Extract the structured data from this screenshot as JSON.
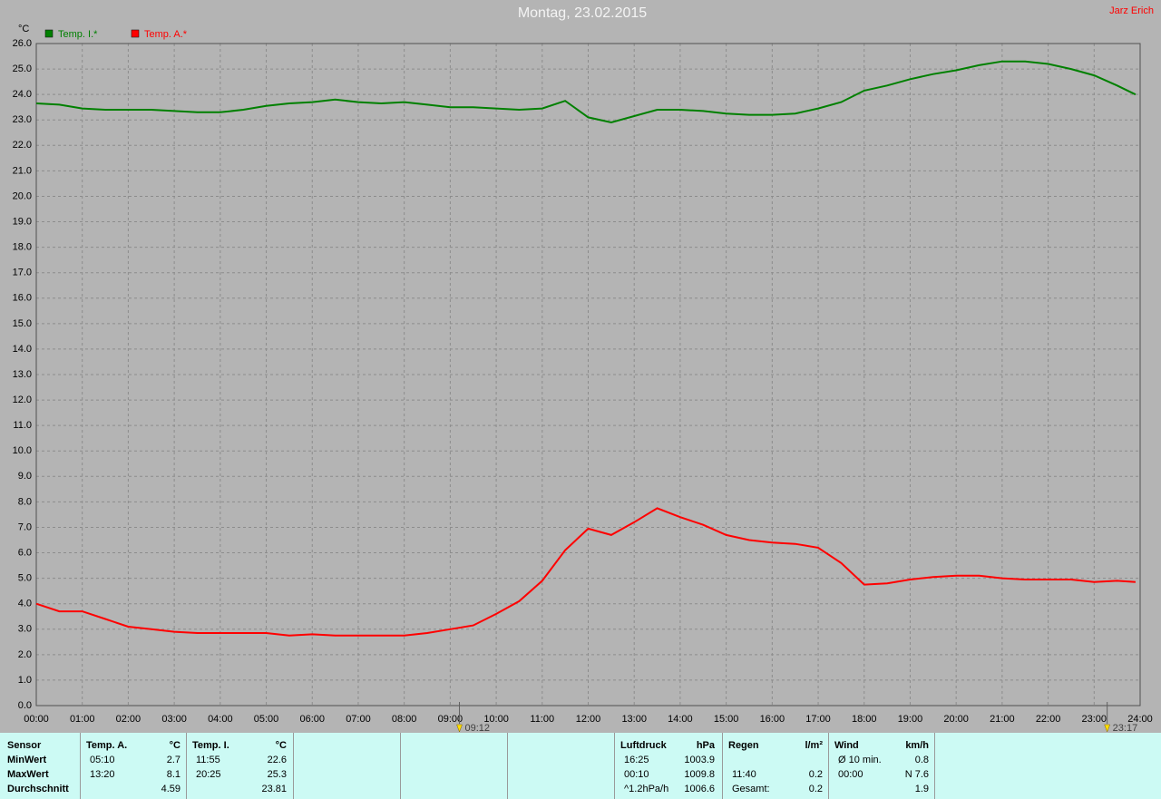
{
  "chart_data": {
    "type": "line",
    "title": "Montag, 23.02.2015",
    "y_label": "°C",
    "x": [
      0,
      0.5,
      1,
      1.5,
      2,
      2.5,
      3,
      3.5,
      4,
      4.5,
      5,
      5.5,
      6,
      6.5,
      7,
      7.5,
      8,
      8.5,
      9,
      9.5,
      10,
      10.5,
      11,
      11.5,
      12,
      12.5,
      13,
      13.5,
      14,
      14.5,
      15,
      15.5,
      16,
      16.5,
      17,
      17.5,
      18,
      18.5,
      19,
      19.5,
      20,
      20.5,
      21,
      21.5,
      22,
      22.5,
      23,
      23.5,
      23.9
    ],
    "series": [
      {
        "name": "Temp. I.*",
        "color": "#008000",
        "values": [
          23.65,
          23.6,
          23.45,
          23.4,
          23.4,
          23.4,
          23.35,
          23.3,
          23.3,
          23.4,
          23.55,
          23.65,
          23.7,
          23.8,
          23.7,
          23.65,
          23.7,
          23.6,
          23.5,
          23.5,
          23.45,
          23.4,
          23.45,
          23.75,
          23.1,
          22.9,
          23.15,
          23.4,
          23.4,
          23.35,
          23.25,
          23.2,
          23.2,
          23.25,
          23.45,
          23.7,
          24.15,
          24.35,
          24.6,
          24.8,
          24.95,
          25.15,
          25.3,
          25.3,
          25.2,
          25.0,
          24.75,
          24.35,
          24.0
        ]
      },
      {
        "name": "Temp. A.*",
        "color": "#ff0000",
        "values": [
          4.0,
          3.7,
          3.7,
          3.4,
          3.1,
          3.0,
          2.9,
          2.85,
          2.85,
          2.85,
          2.85,
          2.75,
          2.8,
          2.75,
          2.75,
          2.75,
          2.75,
          2.85,
          3.0,
          3.15,
          3.6,
          4.1,
          4.9,
          6.1,
          6.95,
          6.7,
          7.2,
          7.75,
          7.4,
          7.1,
          6.7,
          6.5,
          6.4,
          6.35,
          6.2,
          5.6,
          4.75,
          4.8,
          4.95,
          5.05,
          5.1,
          5.1,
          5.0,
          4.95,
          4.95,
          4.95,
          4.85,
          4.9,
          4.85
        ]
      }
    ],
    "xlim": [
      0,
      24
    ],
    "xticks": [
      {
        "value": 0,
        "label": "00:00"
      },
      {
        "value": 1,
        "label": "01:00"
      },
      {
        "value": 2,
        "label": "02:00"
      },
      {
        "value": 3,
        "label": "03:00"
      },
      {
        "value": 4,
        "label": "04:00"
      },
      {
        "value": 5,
        "label": "05:00"
      },
      {
        "value": 6,
        "label": "06:00"
      },
      {
        "value": 7,
        "label": "07:00"
      },
      {
        "value": 8,
        "label": "08:00"
      },
      {
        "value": 9,
        "label": "09:00"
      },
      {
        "value": 10,
        "label": "10:00"
      },
      {
        "value": 11,
        "label": "11:00"
      },
      {
        "value": 12,
        "label": "12:00"
      },
      {
        "value": 13,
        "label": "13:00"
      },
      {
        "value": 14,
        "label": "14:00"
      },
      {
        "value": 15,
        "label": "15:00"
      },
      {
        "value": 16,
        "label": "16:00"
      },
      {
        "value": 17,
        "label": "17:00"
      },
      {
        "value": 18,
        "label": "18:00"
      },
      {
        "value": 19,
        "label": "19:00"
      },
      {
        "value": 20,
        "label": "20:00"
      },
      {
        "value": 21,
        "label": "21:00"
      },
      {
        "value": 22,
        "label": "22:00"
      },
      {
        "value": 23,
        "label": "23:00"
      },
      {
        "value": 24,
        "label": "24:00"
      }
    ],
    "ylim": [
      0,
      26
    ],
    "yticks": [
      {
        "value": 0,
        "label": "0.0"
      },
      {
        "value": 1,
        "label": "1.0"
      },
      {
        "value": 2,
        "label": "2.0"
      },
      {
        "value": 3,
        "label": "3.0"
      },
      {
        "value": 4,
        "label": "4.0"
      },
      {
        "value": 5,
        "label": "5.0"
      },
      {
        "value": 6,
        "label": "6.0"
      },
      {
        "value": 7,
        "label": "7.0"
      },
      {
        "value": 8,
        "label": "8.0"
      },
      {
        "value": 9,
        "label": "9.0"
      },
      {
        "value": 10,
        "label": "10.0"
      },
      {
        "value": 11,
        "label": "11.0"
      },
      {
        "value": 12,
        "label": "12.0"
      },
      {
        "value": 13,
        "label": "13.0"
      },
      {
        "value": 14,
        "label": "14.0"
      },
      {
        "value": 15,
        "label": "15.0"
      },
      {
        "value": 16,
        "label": "16.0"
      },
      {
        "value": 17,
        "label": "17.0"
      },
      {
        "value": 18,
        "label": "18.0"
      },
      {
        "value": 19,
        "label": "19.0"
      },
      {
        "value": 20,
        "label": "20.0"
      },
      {
        "value": 21,
        "label": "21.0"
      },
      {
        "value": 22,
        "label": "22.0"
      },
      {
        "value": 23,
        "label": "23.0"
      },
      {
        "value": 24,
        "label": "24.0"
      },
      {
        "value": 25,
        "label": "25.0"
      },
      {
        "value": 26,
        "label": "26.0"
      }
    ],
    "grid": true,
    "legend": "top-left",
    "annotations": [
      {
        "value": 9.2,
        "label": "09:12"
      },
      {
        "value": 23.2833,
        "label": "23:17"
      }
    ]
  },
  "author": "Jarz Erich",
  "stats": {
    "row_labels": [
      "Sensor",
      "MinWert",
      "MaxWert",
      "Durchschnitt"
    ],
    "panels": [
      {
        "header": [
          "Temp. A.",
          "°C"
        ],
        "rows": [
          [
            "05:10",
            "2.7"
          ],
          [
            "13:20",
            "8.1"
          ],
          [
            null,
            "4.59"
          ]
        ]
      },
      {
        "header": [
          "Temp. I.",
          "°C"
        ],
        "rows": [
          [
            "11:55",
            "22.6"
          ],
          [
            "20:25",
            "25.3"
          ],
          [
            null,
            "23.81"
          ]
        ]
      },
      {
        "header": [
          "Luftdruck",
          "hPa"
        ],
        "rows": [
          [
            "16:25",
            "1003.9"
          ],
          [
            "00:10",
            "1009.8"
          ],
          [
            "^1.2hPa/h",
            "1006.6"
          ]
        ]
      },
      {
        "header": [
          "Regen",
          "l/m²"
        ],
        "rows": [
          null,
          [
            "11:40",
            "0.2"
          ],
          [
            "Gesamt:",
            "0.2"
          ]
        ]
      },
      {
        "header": [
          "Wind",
          "km/h"
        ],
        "rows": [
          [
            "Ø 10 min.",
            "0.8"
          ],
          [
            "00:00",
            "N 7.6"
          ],
          [
            null,
            "1.9"
          ]
        ]
      }
    ]
  }
}
